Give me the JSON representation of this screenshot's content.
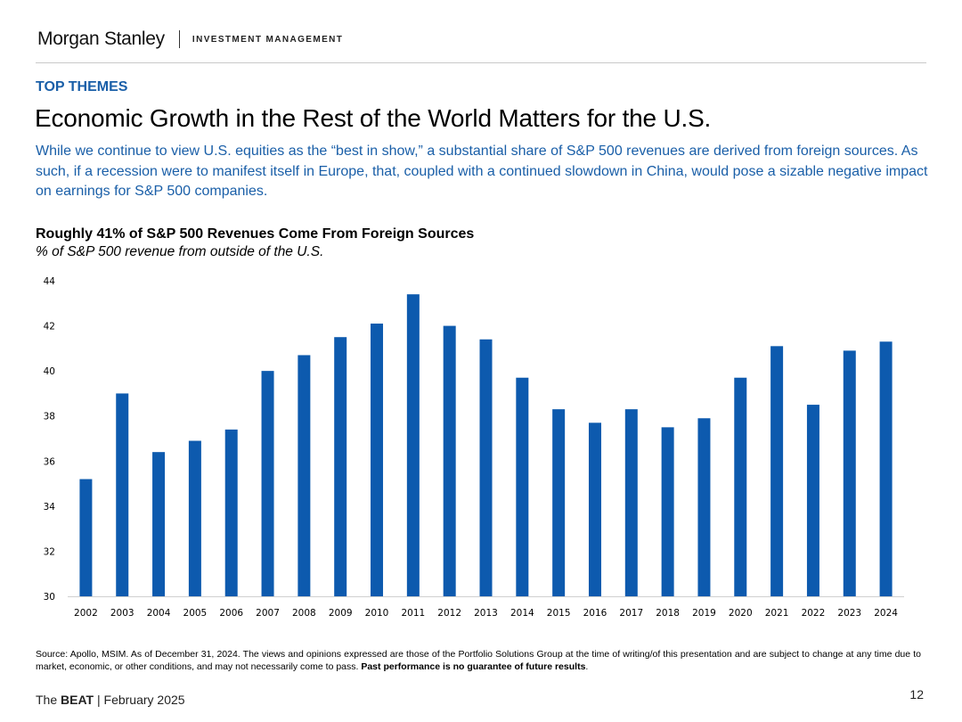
{
  "header": {
    "logo_text": "Morgan Stanley",
    "unit": "INVESTMENT MANAGEMENT"
  },
  "section_label": "TOP THEMES",
  "title": "Economic Growth in the Rest of the World Matters for the U.S.",
  "intro": "While we continue to view U.S. equities as the “best in show,” a substantial share of S&P 500 revenues are derived from foreign sources. As such, if a recession were to manifest itself in Europe, that, coupled with a continued slowdown in China, would pose a sizable negative impact on earnings for S&P 500 companies.",
  "chart_data": {
    "type": "bar",
    "title": "Roughly 41% of S&P 500 Revenues Come From Foreign Sources",
    "subtitle": "% of S&P 500 revenue from outside of the U.S.",
    "xlabel": "",
    "ylabel": "",
    "categories": [
      "2002",
      "2003",
      "2004",
      "2005",
      "2006",
      "2007",
      "2008",
      "2009",
      "2010",
      "2011",
      "2012",
      "2013",
      "2014",
      "2015",
      "2016",
      "2017",
      "2018",
      "2019",
      "2020",
      "2021",
      "2022",
      "2023",
      "2024"
    ],
    "values": [
      35.2,
      39.0,
      36.4,
      36.9,
      37.4,
      40.0,
      40.7,
      41.5,
      42.1,
      43.4,
      42.0,
      41.4,
      39.7,
      38.3,
      37.7,
      38.3,
      37.5,
      37.9,
      39.7,
      41.1,
      38.5,
      40.9,
      41.3
    ],
    "ylim": [
      30,
      44
    ],
    "yticks": [
      "30",
      "32",
      "34",
      "36",
      "38",
      "40",
      "42",
      "44"
    ],
    "grid": false,
    "bar_color": "#0d5aae"
  },
  "source": {
    "text": "Source: Apollo, MSIM. As of December 31, 2024. The views and opinions expressed are those of the Portfolio Solutions Group at the time of writing/of this presentation and are subject to change at any time due to market, economic, or other conditions, and may not necessarily come to pass.",
    "bold": "Past performance is no guarantee of future results",
    "end": "."
  },
  "footer": {
    "prefix": "The",
    "brand": "BEAT",
    "separator": "|",
    "date": "February 2025",
    "page": "12"
  }
}
